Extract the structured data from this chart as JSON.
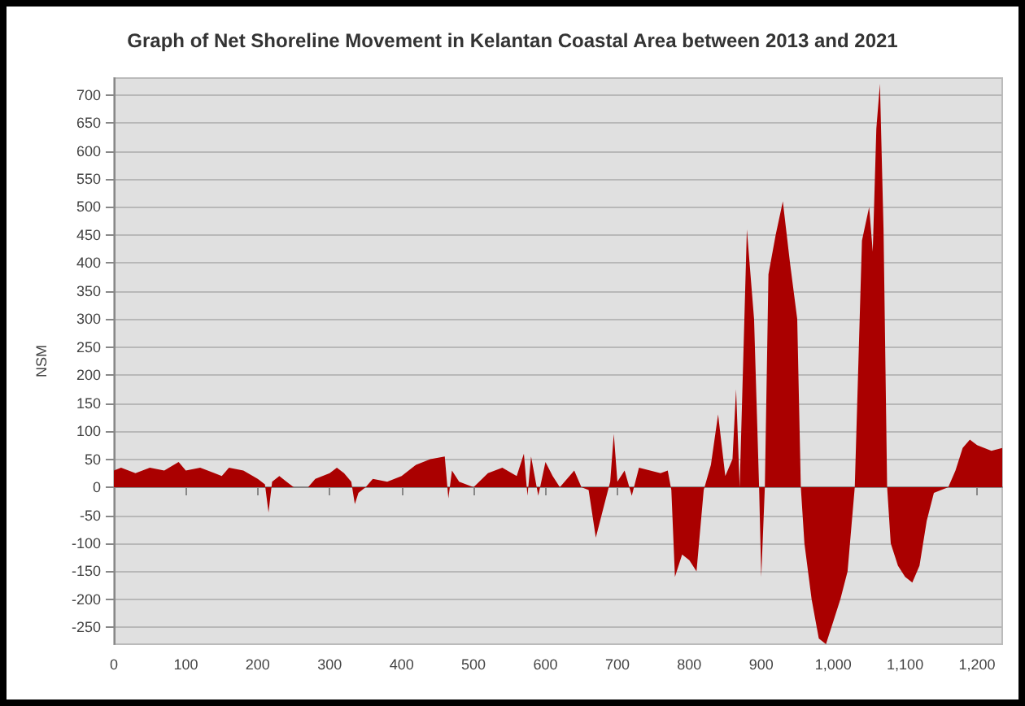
{
  "chart_data": {
    "type": "area",
    "title": "Graph of Net Shoreline Movement in Kelantan Coastal Area between 2013 and 2021",
    "ylabel": "NSM",
    "x": [
      0,
      10,
      30,
      50,
      70,
      90,
      100,
      120,
      140,
      150,
      160,
      180,
      200,
      210,
      215,
      220,
      230,
      240,
      250,
      270,
      280,
      300,
      310,
      320,
      330,
      335,
      340,
      350,
      360,
      380,
      400,
      420,
      440,
      460,
      465,
      470,
      480,
      500,
      520,
      540,
      560,
      570,
      575,
      580,
      590,
      600,
      610,
      620,
      640,
      650,
      660,
      670,
      680,
      690,
      695,
      700,
      710,
      720,
      730,
      760,
      770,
      775,
      780,
      790,
      800,
      810,
      820,
      830,
      840,
      850,
      860,
      865,
      870,
      880,
      890,
      897,
      900,
      905,
      910,
      920,
      930,
      940,
      950,
      955,
      960,
      970,
      980,
      990,
      1000,
      1010,
      1020,
      1030,
      1040,
      1050,
      1055,
      1060,
      1065,
      1070,
      1075,
      1080,
      1090,
      1100,
      1110,
      1120,
      1130,
      1140,
      1150,
      1160,
      1170,
      1180,
      1190,
      1200,
      1210,
      1220,
      1235
    ],
    "series": [
      {
        "color": "#aa0000",
        "values": [
          30,
          35,
          25,
          35,
          30,
          45,
          30,
          35,
          25,
          20,
          35,
          30,
          15,
          5,
          -45,
          10,
          20,
          10,
          0,
          0,
          15,
          25,
          35,
          25,
          10,
          -30,
          -10,
          0,
          15,
          10,
          20,
          40,
          50,
          55,
          -20,
          30,
          10,
          0,
          25,
          35,
          20,
          60,
          -15,
          55,
          -15,
          45,
          20,
          0,
          30,
          0,
          -5,
          -90,
          -40,
          10,
          95,
          10,
          30,
          -15,
          35,
          25,
          30,
          -5,
          -160,
          -120,
          -130,
          -150,
          -5,
          40,
          130,
          20,
          50,
          175,
          0,
          460,
          300,
          0,
          -160,
          0,
          380,
          450,
          510,
          400,
          300,
          0,
          -100,
          -200,
          -270,
          -280,
          -240,
          -200,
          -150,
          0,
          440,
          500,
          420,
          640,
          720,
          460,
          0,
          -100,
          -140,
          -160,
          -170,
          -140,
          -60,
          -10,
          -5,
          0,
          30,
          70,
          85,
          75,
          70,
          65,
          70
        ]
      }
    ],
    "xlim": [
      0,
      1235
    ],
    "xticks": [
      0,
      100,
      200,
      300,
      400,
      500,
      600,
      700,
      800,
      900,
      {
        "value": 1000,
        "label": "1,000"
      },
      {
        "value": 1100,
        "label": "1,100"
      },
      {
        "value": 1200,
        "label": "1,200"
      }
    ],
    "ylim": [
      -280,
      730
    ],
    "yticks": [
      -250,
      -200,
      -150,
      -100,
      -50,
      0,
      50,
      100,
      150,
      200,
      250,
      300,
      350,
      400,
      450,
      500,
      550,
      600,
      650,
      700
    ],
    "grid": "y",
    "marker": "none"
  }
}
